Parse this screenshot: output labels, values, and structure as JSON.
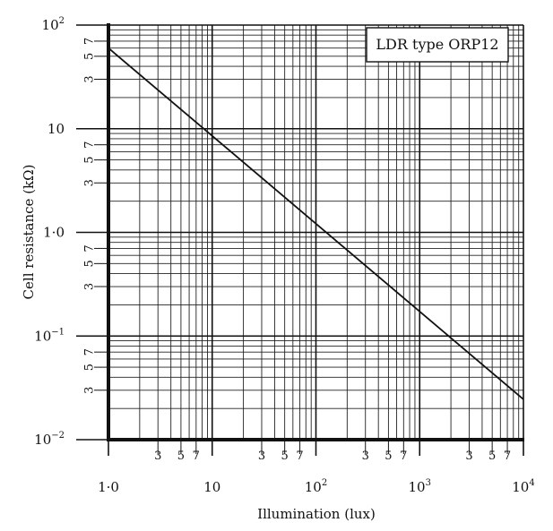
{
  "chart_data": {
    "type": "line",
    "title": "LDR type ORP12",
    "xlabel": "Illumination (lux)",
    "ylabel": "Cell resistance (kΩ)",
    "x_scale": "log",
    "y_scale": "log",
    "xlim": [
      1,
      10000
    ],
    "ylim": [
      0.01,
      100
    ],
    "grid": true,
    "legend_position": "top-right",
    "x_major_ticks": [
      {
        "value": 1,
        "base": "1·0",
        "sup": ""
      },
      {
        "value": 10,
        "base": "10",
        "sup": ""
      },
      {
        "value": 100,
        "base": "10",
        "sup": "2"
      },
      {
        "value": 1000,
        "base": "10",
        "sup": "3"
      },
      {
        "value": 10000,
        "base": "10",
        "sup": "4"
      }
    ],
    "y_major_ticks": [
      {
        "value": 100,
        "base": "10",
        "sup": "2"
      },
      {
        "value": 10,
        "base": "10",
        "sup": ""
      },
      {
        "value": 1,
        "base": "1·0",
        "sup": ""
      },
      {
        "value": 0.1,
        "base": "10",
        "sup": "−1"
      },
      {
        "value": 0.01,
        "base": "10",
        "sup": "−2"
      }
    ],
    "minor_labels": [
      "3",
      "5",
      "7"
    ],
    "series": [
      {
        "name": "LDR type ORP12",
        "x": [
          1,
          10000
        ],
        "y": [
          60,
          0.0245
        ]
      }
    ]
  }
}
